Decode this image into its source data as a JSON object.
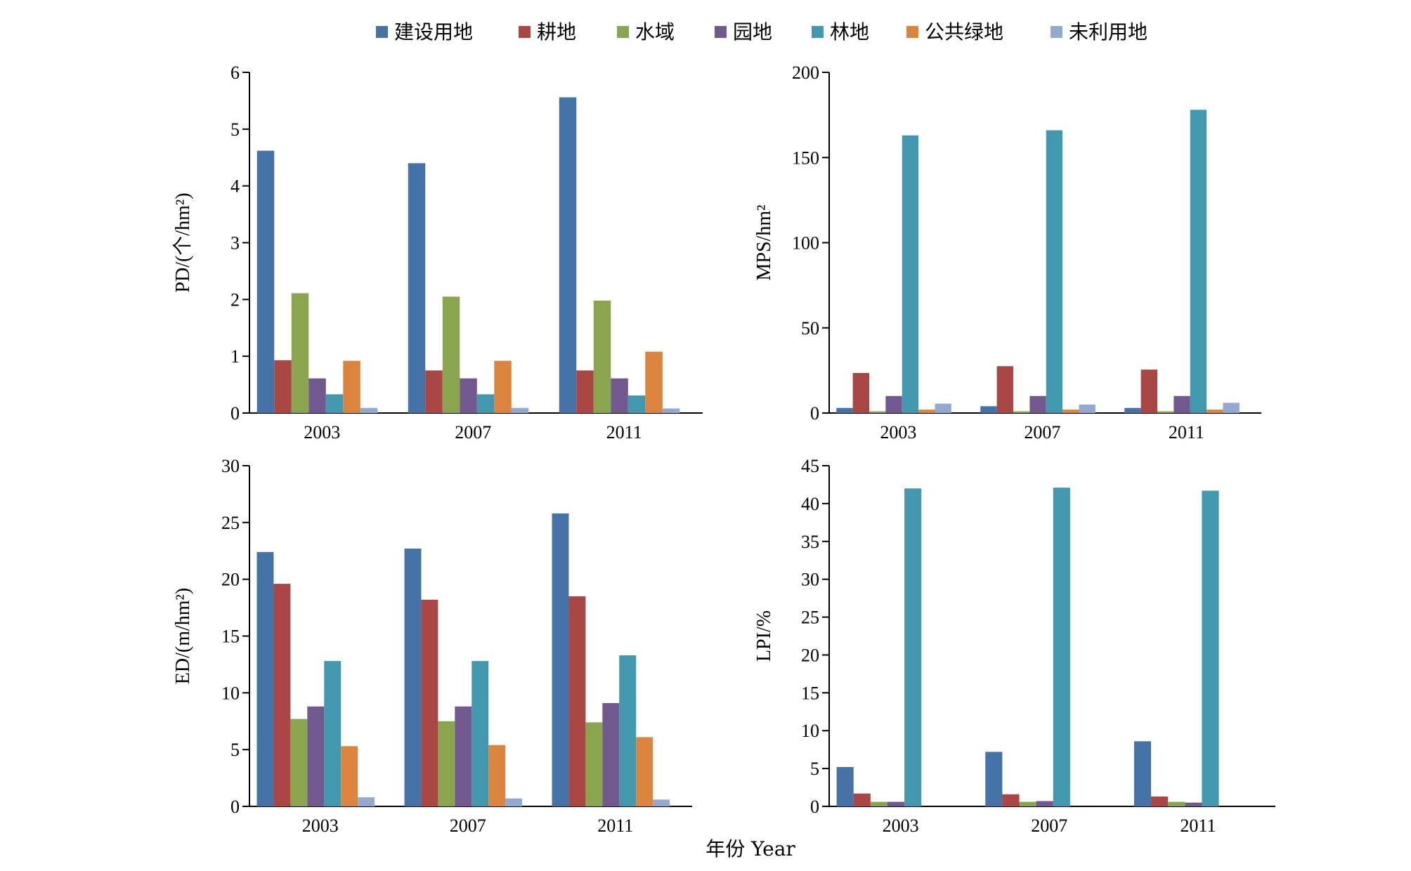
{
  "colors": [
    "#4572A7",
    "#AA4643",
    "#89A54E",
    "#71588F",
    "#4198AF",
    "#DB843D",
    "#93A9CF"
  ],
  "legend": [
    "建设用地",
    "耕地",
    "水域",
    "园地",
    "林地",
    "公共绿地",
    "未利用地"
  ],
  "x_axis_title": "年份 Year",
  "chart_data": [
    {
      "type": "bar",
      "id": "pd",
      "ylabel": "PD/(个/hm²)",
      "ylim": [
        0,
        6
      ],
      "yticks": [
        0,
        1,
        2,
        3,
        4,
        5,
        6
      ],
      "categories": [
        "2003",
        "2007",
        "2011"
      ],
      "series": [
        {
          "name": "建设用地",
          "values": [
            4.62,
            4.4,
            5.56
          ]
        },
        {
          "name": "耕地",
          "values": [
            0.93,
            0.75,
            0.75
          ]
        },
        {
          "name": "水域",
          "values": [
            2.11,
            2.05,
            1.98
          ]
        },
        {
          "name": "园地",
          "values": [
            0.61,
            0.61,
            0.61
          ]
        },
        {
          "name": "林地",
          "values": [
            0.33,
            0.33,
            0.31
          ]
        },
        {
          "name": "公共绿地",
          "values": [
            0.92,
            0.92,
            1.08
          ]
        },
        {
          "name": "未利用地",
          "values": [
            0.09,
            0.09,
            0.08
          ]
        }
      ]
    },
    {
      "type": "bar",
      "id": "mps",
      "ylabel": "MPS/hm²",
      "ylim": [
        0,
        200
      ],
      "yticks": [
        0,
        50,
        100,
        150,
        200
      ],
      "categories": [
        "2003",
        "2007",
        "2011"
      ],
      "series": [
        {
          "name": "建设用地",
          "values": [
            3,
            4,
            3
          ]
        },
        {
          "name": "耕地",
          "values": [
            23.5,
            27.5,
            25.5
          ]
        },
        {
          "name": "水域",
          "values": [
            1,
            1,
            1
          ]
        },
        {
          "name": "园地",
          "values": [
            10,
            10,
            10
          ]
        },
        {
          "name": "林地",
          "values": [
            163,
            166,
            178
          ]
        },
        {
          "name": "公共绿地",
          "values": [
            2,
            2,
            2
          ]
        },
        {
          "name": "未利用地",
          "values": [
            5.5,
            5,
            6
          ]
        }
      ]
    },
    {
      "type": "bar",
      "id": "ed",
      "ylabel": "ED/(m/hm²)",
      "ylim": [
        0,
        30
      ],
      "yticks": [
        0,
        5,
        10,
        15,
        20,
        25,
        30
      ],
      "categories": [
        "2003",
        "2007",
        "2011"
      ],
      "series": [
        {
          "name": "建设用地",
          "values": [
            22.4,
            22.7,
            25.8
          ]
        },
        {
          "name": "耕地",
          "values": [
            19.6,
            18.2,
            18.5
          ]
        },
        {
          "name": "水域",
          "values": [
            7.7,
            7.5,
            7.4
          ]
        },
        {
          "name": "园地",
          "values": [
            8.8,
            8.8,
            9.1
          ]
        },
        {
          "name": "林地",
          "values": [
            12.8,
            12.8,
            13.3
          ]
        },
        {
          "name": "公共绿地",
          "values": [
            5.3,
            5.4,
            6.1
          ]
        },
        {
          "name": "未利用地",
          "values": [
            0.8,
            0.7,
            0.6
          ]
        }
      ]
    },
    {
      "type": "bar",
      "id": "lpi",
      "ylabel": "LPI/%",
      "ylim": [
        0,
        45
      ],
      "yticks": [
        0,
        5,
        10,
        15,
        20,
        25,
        30,
        35,
        40,
        45
      ],
      "categories": [
        "2003",
        "2007",
        "2011"
      ],
      "series": [
        {
          "name": "建设用地",
          "values": [
            5.2,
            7.2,
            8.6
          ]
        },
        {
          "name": "耕地",
          "values": [
            1.7,
            1.6,
            1.3
          ]
        },
        {
          "name": "水域",
          "values": [
            0.6,
            0.6,
            0.6
          ]
        },
        {
          "name": "园地",
          "values": [
            0.6,
            0.7,
            0.5
          ]
        },
        {
          "name": "林地",
          "values": [
            42,
            42.1,
            41.7
          ]
        },
        {
          "name": "公共绿地",
          "values": [
            0,
            0,
            0
          ]
        },
        {
          "name": "未利用地",
          "values": [
            0,
            0,
            0
          ]
        }
      ]
    }
  ]
}
